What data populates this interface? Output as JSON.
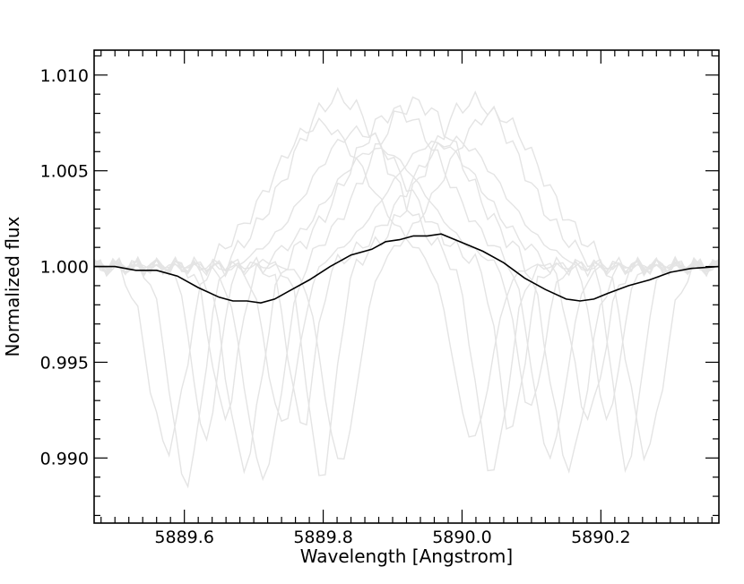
{
  "chart_data": {
    "type": "line",
    "title": "",
    "xlabel": "Wavelength [Angstrom]",
    "ylabel": "Normalized flux",
    "xlim": [
      5889.47,
      5890.37
    ],
    "ylim": [
      0.9866,
      1.0113
    ],
    "x_ticks": [
      {
        "value": 5889.6,
        "label": "5889.6"
      },
      {
        "value": 5889.8,
        "label": "5889.8"
      },
      {
        "value": 5890.0,
        "label": "5890.0"
      },
      {
        "value": 5890.2,
        "label": "5890.2"
      }
    ],
    "y_ticks": [
      {
        "value": 0.99,
        "label": "0.990"
      },
      {
        "value": 0.995,
        "label": "0.995"
      },
      {
        "value": 1.0,
        "label": "1.000"
      },
      {
        "value": 1.005,
        "label": "1.005"
      },
      {
        "value": 1.01,
        "label": "1.010"
      }
    ],
    "x_minor_step": 0.02,
    "y_minor_step": 0.001,
    "grid": false,
    "legend": "none",
    "colors": {
      "mean": "#000000",
      "individual": "#e4e4e4"
    },
    "individual_shift_range": [
      -0.125,
      0.125
    ],
    "individual_count": 10,
    "series": [
      {
        "x": [
          5889.47,
          5889.5,
          5889.53,
          5889.56,
          5889.59,
          5889.62,
          5889.65,
          5889.67,
          5889.69,
          5889.71,
          5889.73,
          5889.75,
          5889.78,
          5889.81,
          5889.84,
          5889.87,
          5889.89,
          5889.91,
          5889.93,
          5889.95,
          5889.97,
          5889.99,
          5890.01,
          5890.03,
          5890.06,
          5890.09,
          5890.12,
          5890.15,
          5890.17,
          5890.19,
          5890.21,
          5890.24,
          5890.27,
          5890.3,
          5890.33,
          5890.37
        ],
        "y": [
          1.0,
          1.0,
          0.9998,
          0.9998,
          0.9995,
          0.9989,
          0.9984,
          0.9982,
          0.9982,
          0.9981,
          0.9983,
          0.9987,
          0.9993,
          1.0,
          1.0006,
          1.0009,
          1.0013,
          1.0014,
          1.0016,
          1.0016,
          1.0017,
          1.0014,
          1.0011,
          1.0008,
          1.0002,
          0.9994,
          0.9988,
          0.9983,
          0.9982,
          0.9983,
          0.9986,
          0.999,
          0.9993,
          0.9997,
          0.9999,
          1.0
        ]
      }
    ]
  }
}
